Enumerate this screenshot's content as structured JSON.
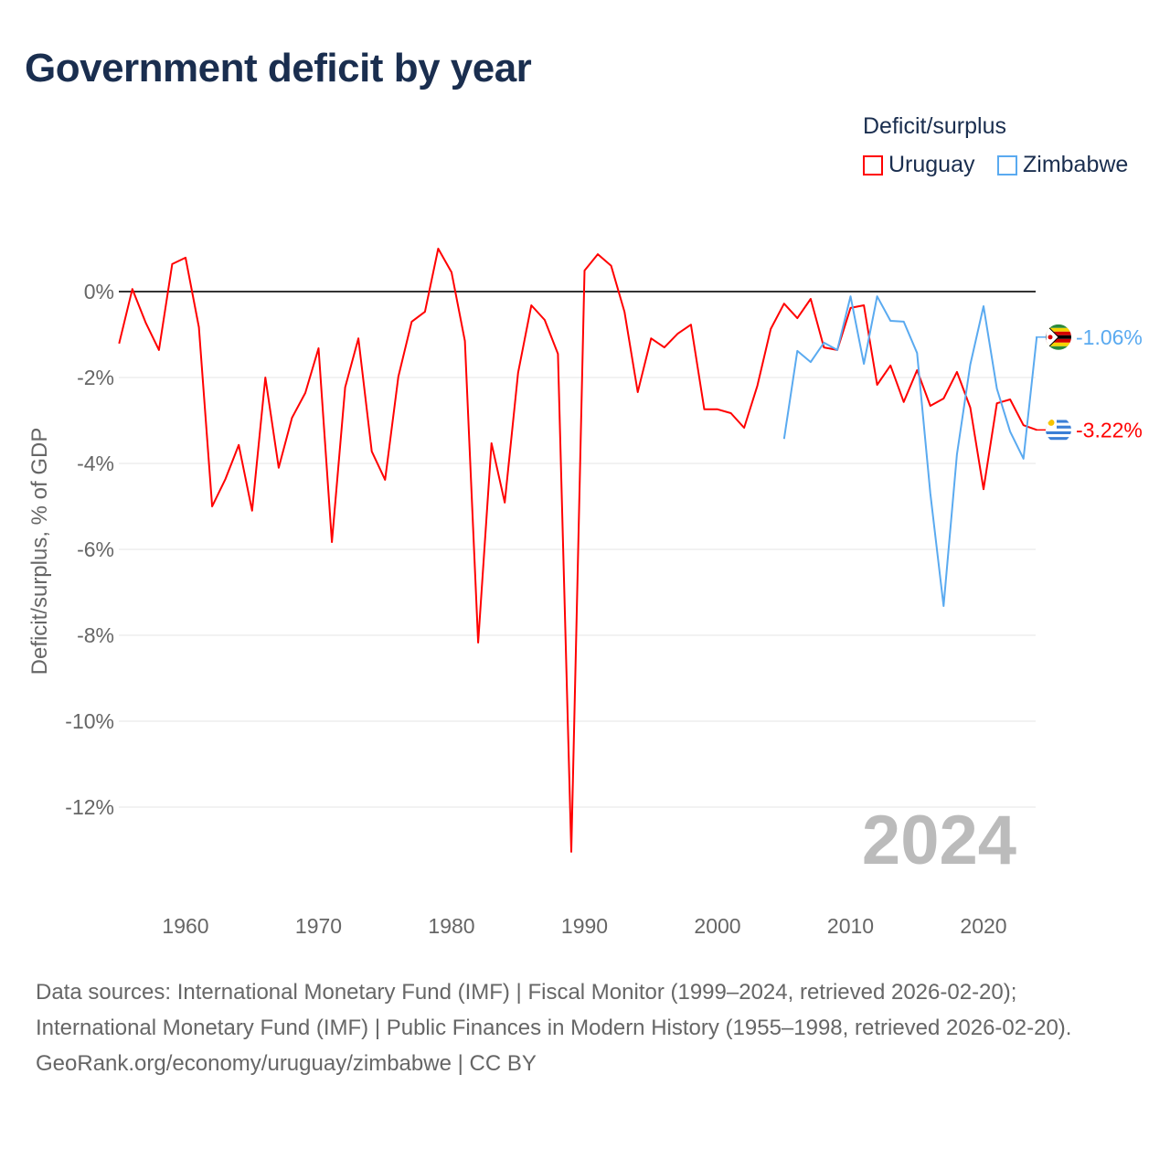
{
  "title": "Government deficit by year",
  "legend": {
    "title": "Deficit/surplus",
    "items": [
      {
        "name": "Uruguay",
        "color": "#ff0000"
      },
      {
        "name": "Zimbabwe",
        "color": "#5aaaf0"
      }
    ]
  },
  "watermark_year": "2024",
  "chart_data": {
    "type": "line",
    "title": "Government deficit by year",
    "ylabel": "Deficit/surplus, % of GDP",
    "xlabel": "",
    "xlim": [
      1955,
      2024
    ],
    "ylim": [
      -13.5,
      1.5
    ],
    "yticks": [
      0,
      -2,
      -4,
      -6,
      -8,
      -10,
      -12
    ],
    "ytick_labels": [
      "0%",
      "-2%",
      "-4%",
      "-6%",
      "-8%",
      "-10%",
      "-12%"
    ],
    "xticks": [
      1960,
      1970,
      1980,
      1990,
      2000,
      2010,
      2020
    ],
    "xtick_labels": [
      "1960",
      "1970",
      "1980",
      "1990",
      "2000",
      "2010",
      "2020"
    ],
    "grid": true,
    "series": [
      {
        "name": "Uruguay",
        "color": "#ff0000",
        "end_label": "-3.22%",
        "start_year": 1955,
        "values": [
          -1.21,
          0.06,
          -0.72,
          -1.36,
          0.64,
          0.79,
          -0.83,
          -5.0,
          -4.36,
          -3.57,
          -5.1,
          -2.0,
          -4.1,
          -2.94,
          -2.36,
          -1.32,
          -5.83,
          -2.23,
          -1.09,
          -3.72,
          -4.38,
          -1.98,
          -0.7,
          -0.47,
          1.0,
          0.45,
          -1.15,
          -8.17,
          -3.53,
          -4.91,
          -1.89,
          -0.32,
          -0.66,
          -1.45,
          -13.04,
          0.49,
          0.87,
          0.6,
          -0.47,
          -2.34,
          -1.09,
          -1.3,
          -0.98,
          -0.77,
          -2.74,
          -2.74,
          -2.83,
          -3.17,
          -2.19,
          -0.87,
          -0.28,
          -0.62,
          -0.17,
          -1.3,
          -1.36,
          -0.38,
          -0.32,
          -2.17,
          -1.72,
          -2.57,
          -1.83,
          -2.66,
          -2.49,
          -1.87,
          -2.7,
          -4.6,
          -2.6,
          -2.51,
          -3.11,
          -3.22
        ]
      },
      {
        "name": "Zimbabwe",
        "color": "#5aaaf0",
        "end_label": "-1.06%",
        "start_year": 2005,
        "values": [
          -3.43,
          -1.38,
          -1.64,
          -1.19,
          -1.36,
          -0.11,
          -1.68,
          -0.11,
          -0.68,
          -0.7,
          -1.43,
          -4.7,
          -7.32,
          -3.79,
          -1.7,
          -0.34,
          -2.26,
          -3.26,
          -3.89,
          -1.06
        ]
      }
    ]
  },
  "footer": {
    "sources": "Data sources: International Monetary Fund (IMF) | Fiscal Monitor (1999–2024, retrieved 2026-02-20); International Monetary Fund (IMF) | Public Finances in Modern History (1955–1998, retrieved 2026-02-20).",
    "credit": "GeoRank.org/economy/uruguay/zimbabwe | CC BY"
  }
}
